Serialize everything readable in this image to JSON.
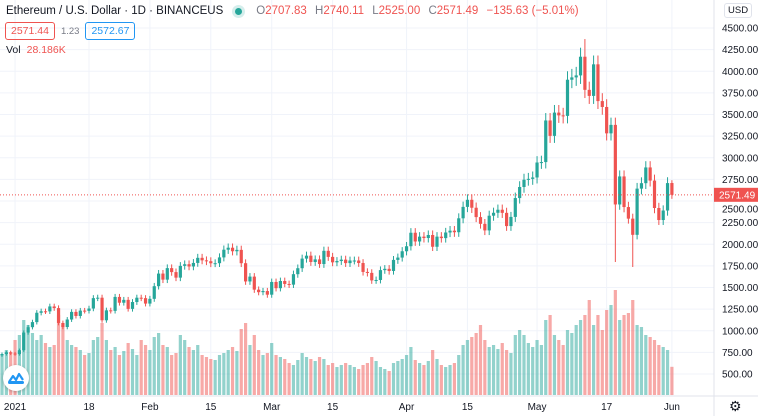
{
  "header": {
    "symbol": "Ethereum / U.S. Dollar · 1D · BINANCEUS",
    "o_label": "O",
    "o": "2707.83",
    "h_label": "H",
    "h": "2740.11",
    "l_label": "L",
    "l": "2525.00",
    "c_label": "C",
    "c": "2571.49",
    "change": "−135.63 (−5.01%)"
  },
  "quote": {
    "sell": "2571.44",
    "spread": "1.23",
    "buy": "2572.67"
  },
  "volume": {
    "label": "Vol",
    "value": "28.186K"
  },
  "currency": "USD",
  "colors": {
    "up": "#26a69a",
    "down": "#ef5350"
  },
  "chart_data": {
    "type": "candlestick",
    "title": "Ethereum / U.S. Dollar · 1D · BINANCEUS",
    "start_date": "2020-12-29",
    "last_price": 2571.49,
    "last_open": 2707.83,
    "ylim": [
      300,
      4600
    ],
    "y_ticks": [
      "4500.00",
      "4250.00",
      "4000.00",
      "3750.00",
      "3500.00",
      "3250.00",
      "3000.00",
      "2750.00",
      "2500.00",
      "2250.00",
      "2000.00",
      "1750.00",
      "1500.00",
      "1250.00",
      "1000.00",
      "750.00",
      "500.00"
    ],
    "x_ticks": [
      {
        "label": "2021",
        "day": 3
      },
      {
        "label": "18",
        "day": 20
      },
      {
        "label": "Feb",
        "day": 34
      },
      {
        "label": "15",
        "day": 48
      },
      {
        "label": "Mar",
        "day": 62
      },
      {
        "label": "15",
        "day": 76
      },
      {
        "label": "Apr",
        "day": 93
      },
      {
        "label": "15",
        "day": 107
      },
      {
        "label": "May",
        "day": 123
      },
      {
        "label": "17",
        "day": 139
      },
      {
        "label": "Jun",
        "day": 154
      }
    ],
    "close": [
      731,
      751,
      737,
      730,
      775,
      979,
      1041,
      1100,
      1208,
      1225,
      1224,
      1281,
      1262,
      1090,
      1043,
      1130,
      1218,
      1171,
      1233,
      1230,
      1257,
      1377,
      1382,
      1121,
      1236,
      1230,
      1391,
      1324,
      1357,
      1253,
      1332,
      1382,
      1377,
      1314,
      1369,
      1515,
      1661,
      1591,
      1724,
      1678,
      1614,
      1750,
      1769,
      1743,
      1784,
      1843,
      1814,
      1804,
      1780,
      1781,
      1848,
      1937,
      1960,
      1919,
      1935,
      1781,
      1570,
      1626,
      1475,
      1446,
      1459,
      1417,
      1564,
      1492,
      1575,
      1541,
      1533,
      1654,
      1723,
      1834,
      1868,
      1795,
      1825,
      1771,
      1924,
      1854,
      1791,
      1806,
      1822,
      1782,
      1812,
      1812,
      1783,
      1680,
      1669,
      1582,
      1587,
      1701,
      1716,
      1691,
      1819,
      1846,
      1919,
      1977,
      2133,
      2032,
      2088,
      2072,
      2107,
      1971,
      2088,
      2071,
      2136,
      2157,
      2139,
      2300,
      2432,
      2514,
      2422,
      2314,
      2236,
      2160,
      2330,
      2364,
      2399,
      2363,
      2210,
      2316,
      2534,
      2662,
      2746,
      2756,
      2772,
      2945,
      2950,
      3431,
      3253,
      3522,
      3490,
      3484,
      3902,
      3929,
      3952,
      4168,
      3785,
      3715,
      4080,
      3655,
      3587,
      3282,
      3380,
      2460,
      2784,
      2430,
      2296,
      2109,
      2643,
      2706,
      2888,
      2736,
      2419,
      2280,
      2390,
      2707,
      2571.49
    ],
    "volume_k": [
      40,
      45,
      42,
      55,
      60,
      75,
      70,
      62,
      55,
      60,
      52,
      48,
      50,
      80,
      70,
      55,
      50,
      48,
      45,
      40,
      42,
      55,
      58,
      72,
      55,
      45,
      48,
      40,
      44,
      52,
      46,
      40,
      55,
      50,
      45,
      58,
      62,
      50,
      48,
      40,
      42,
      60,
      55,
      48,
      45,
      50,
      40,
      38,
      36,
      35,
      40,
      42,
      45,
      48,
      44,
      66,
      72,
      50,
      60,
      45,
      40,
      42,
      52,
      40,
      38,
      36,
      32,
      30,
      35,
      42,
      38,
      36,
      34,
      38,
      36,
      30,
      32,
      28,
      30,
      32,
      30,
      28,
      26,
      30,
      32,
      38,
      34,
      28,
      26,
      24,
      32,
      34,
      36,
      40,
      48,
      35,
      32,
      30,
      34,
      45,
      36,
      30,
      28,
      30,
      32,
      40,
      50,
      55,
      58,
      62,
      70,
      55,
      48,
      50,
      46,
      52,
      45,
      42,
      60,
      65,
      60,
      52,
      48,
      55,
      50,
      75,
      80,
      60,
      55,
      50,
      65,
      62,
      70,
      75,
      80,
      95,
      70,
      80,
      65,
      85,
      90,
      105,
      75,
      80,
      82,
      95,
      70,
      68,
      60,
      58,
      55,
      50,
      48,
      45,
      28.186
    ],
    "extremes": [
      {
        "day": 134,
        "high": 4372
      },
      {
        "day": 141,
        "low": 1795
      },
      {
        "day": 145,
        "low": 1737
      },
      {
        "day": 154,
        "high": 2740.11,
        "low": 2525
      }
    ]
  }
}
